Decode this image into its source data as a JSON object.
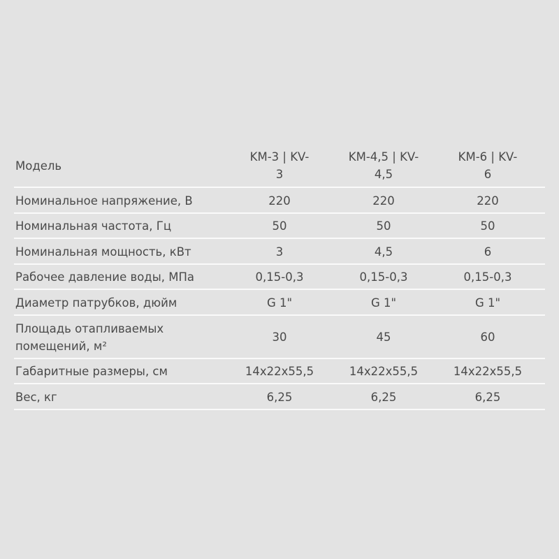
{
  "table": {
    "header": {
      "label": "Модель",
      "models": [
        [
          "KM-3 | KV-",
          "3"
        ],
        [
          "KM-4,5 | KV-",
          "4,5"
        ],
        [
          "KM-6 | KV-",
          "6"
        ]
      ]
    },
    "rows": [
      {
        "label": [
          "Номинальное напряжение, В"
        ],
        "values": [
          "220",
          "220",
          "220"
        ]
      },
      {
        "label": [
          "Номинальная частота, Гц"
        ],
        "values": [
          "50",
          "50",
          "50"
        ]
      },
      {
        "label": [
          "Номинальная мощность, кВт"
        ],
        "values": [
          "3",
          "4,5",
          "6"
        ]
      },
      {
        "label": [
          "Рабочее давление воды, МПа"
        ],
        "values": [
          "0,15-0,3",
          "0,15-0,3",
          "0,15-0,3"
        ]
      },
      {
        "label": [
          "Диаметр патрубков, дюйм"
        ],
        "values": [
          "G 1\"",
          "G 1\"",
          "G 1\""
        ]
      },
      {
        "label": [
          "Площадь отапливаемых",
          "помещений, м²"
        ],
        "values": [
          "30",
          "45",
          "60"
        ]
      },
      {
        "label": [
          "Габаритные размеры, см"
        ],
        "values": [
          "14x22x55,5",
          "14x22x55,5",
          "14x22x55,5"
        ]
      },
      {
        "label": [
          "Вес, кг"
        ],
        "values": [
          "6,25",
          "6,25",
          "6,25"
        ]
      }
    ]
  }
}
